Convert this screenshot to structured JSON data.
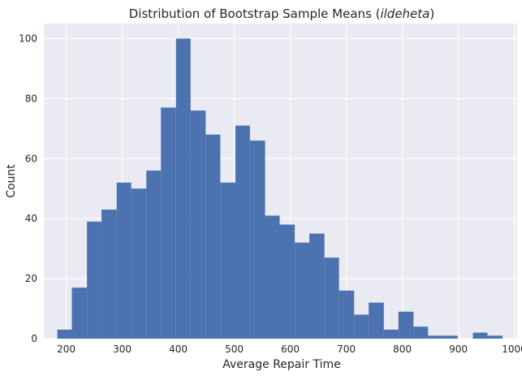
{
  "chart_data": {
    "type": "bar",
    "title": "Distribution of Bootstrap Sample Means ($\\tilde\\theta$)",
    "title_plain": "Distribution of Bootstrap Sample Means (",
    "title_italic": "ildeheta",
    "title_close": ")",
    "xlabel": "Average Repair Time",
    "ylabel": "Count",
    "xlim": [
      160,
      1005
    ],
    "ylim": [
      0,
      105
    ],
    "xticks": [
      200,
      300,
      400,
      500,
      600,
      700,
      800,
      900,
      1000
    ],
    "yticks": [
      0,
      20,
      40,
      60,
      80,
      100
    ],
    "grid": true,
    "colors": {
      "bar": "#4c72b0",
      "background": "#eaeaf2",
      "grid": "#ffffff"
    },
    "bins": [
      {
        "x0": 184,
        "x1": 210,
        "count": 3
      },
      {
        "x0": 210,
        "x1": 237,
        "count": 17
      },
      {
        "x0": 237,
        "x1": 263,
        "count": 39
      },
      {
        "x0": 263,
        "x1": 290,
        "count": 43
      },
      {
        "x0": 290,
        "x1": 316,
        "count": 52
      },
      {
        "x0": 316,
        "x1": 343,
        "count": 50
      },
      {
        "x0": 343,
        "x1": 369,
        "count": 56
      },
      {
        "x0": 369,
        "x1": 396,
        "count": 77
      },
      {
        "x0": 396,
        "x1": 422,
        "count": 100
      },
      {
        "x0": 422,
        "x1": 449,
        "count": 76
      },
      {
        "x0": 449,
        "x1": 475,
        "count": 68
      },
      {
        "x0": 475,
        "x1": 502,
        "count": 52
      },
      {
        "x0": 502,
        "x1": 528,
        "count": 71
      },
      {
        "x0": 528,
        "x1": 555,
        "count": 66
      },
      {
        "x0": 555,
        "x1": 581,
        "count": 41
      },
      {
        "x0": 581,
        "x1": 608,
        "count": 38
      },
      {
        "x0": 608,
        "x1": 634,
        "count": 32
      },
      {
        "x0": 634,
        "x1": 661,
        "count": 35
      },
      {
        "x0": 661,
        "x1": 687,
        "count": 27
      },
      {
        "x0": 687,
        "x1": 714,
        "count": 16
      },
      {
        "x0": 714,
        "x1": 740,
        "count": 8
      },
      {
        "x0": 740,
        "x1": 767,
        "count": 12
      },
      {
        "x0": 767,
        "x1": 793,
        "count": 3
      },
      {
        "x0": 793,
        "x1": 820,
        "count": 9
      },
      {
        "x0": 820,
        "x1": 846,
        "count": 4
      },
      {
        "x0": 846,
        "x1": 873,
        "count": 1
      },
      {
        "x0": 873,
        "x1": 899,
        "count": 1
      },
      {
        "x0": 899,
        "x1": 926,
        "count": 0
      },
      {
        "x0": 926,
        "x1": 952,
        "count": 2
      },
      {
        "x0": 952,
        "x1": 979,
        "count": 1
      }
    ]
  }
}
